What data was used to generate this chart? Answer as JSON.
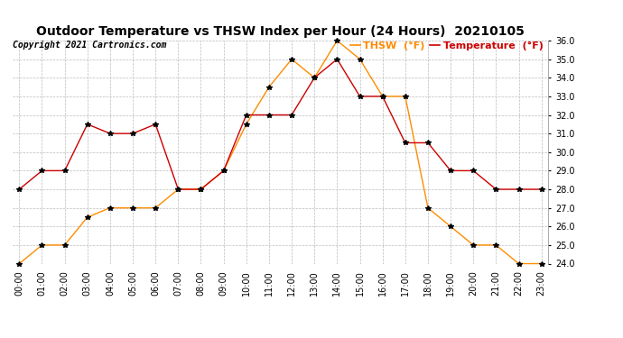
{
  "title": "Outdoor Temperature vs THSW Index per Hour (24 Hours)  20210105",
  "copyright": "Copyright 2021 Cartronics.com",
  "hours": [
    "00:00",
    "01:00",
    "02:00",
    "03:00",
    "04:00",
    "05:00",
    "06:00",
    "07:00",
    "08:00",
    "09:00",
    "10:00",
    "11:00",
    "12:00",
    "13:00",
    "14:00",
    "15:00",
    "16:00",
    "17:00",
    "18:00",
    "19:00",
    "20:00",
    "21:00",
    "22:00",
    "23:00"
  ],
  "temperature": [
    28.0,
    29.0,
    29.0,
    31.5,
    31.0,
    31.0,
    31.5,
    28.0,
    28.0,
    29.0,
    32.0,
    32.0,
    32.0,
    34.0,
    35.0,
    33.0,
    33.0,
    30.5,
    30.5,
    29.0,
    29.0,
    28.0,
    28.0,
    28.0
  ],
  "thsw": [
    24.0,
    25.0,
    25.0,
    26.5,
    27.0,
    27.0,
    27.0,
    28.0,
    28.0,
    29.0,
    31.5,
    33.5,
    35.0,
    34.0,
    36.0,
    35.0,
    33.0,
    33.0,
    27.0,
    26.0,
    25.0,
    25.0,
    24.0,
    24.0
  ],
  "temp_color": "#cc0000",
  "thsw_color": "#ff8c00",
  "marker": "*",
  "marker_color": "#000000",
  "marker_size": 4,
  "ylim_min": 24.0,
  "ylim_max": 36.0,
  "ytick_step": 1.0,
  "legend_thsw": "THSW  (°F)",
  "legend_temp": "Temperature  (°F)",
  "legend_thsw_color": "#ff8c00",
  "legend_temp_color": "#cc0000",
  "background_color": "#ffffff",
  "grid_color": "#bbbbbb",
  "title_fontsize": 10,
  "copyright_fontsize": 7,
  "axis_fontsize": 7,
  "legend_fontsize": 8,
  "line_width": 1.0
}
